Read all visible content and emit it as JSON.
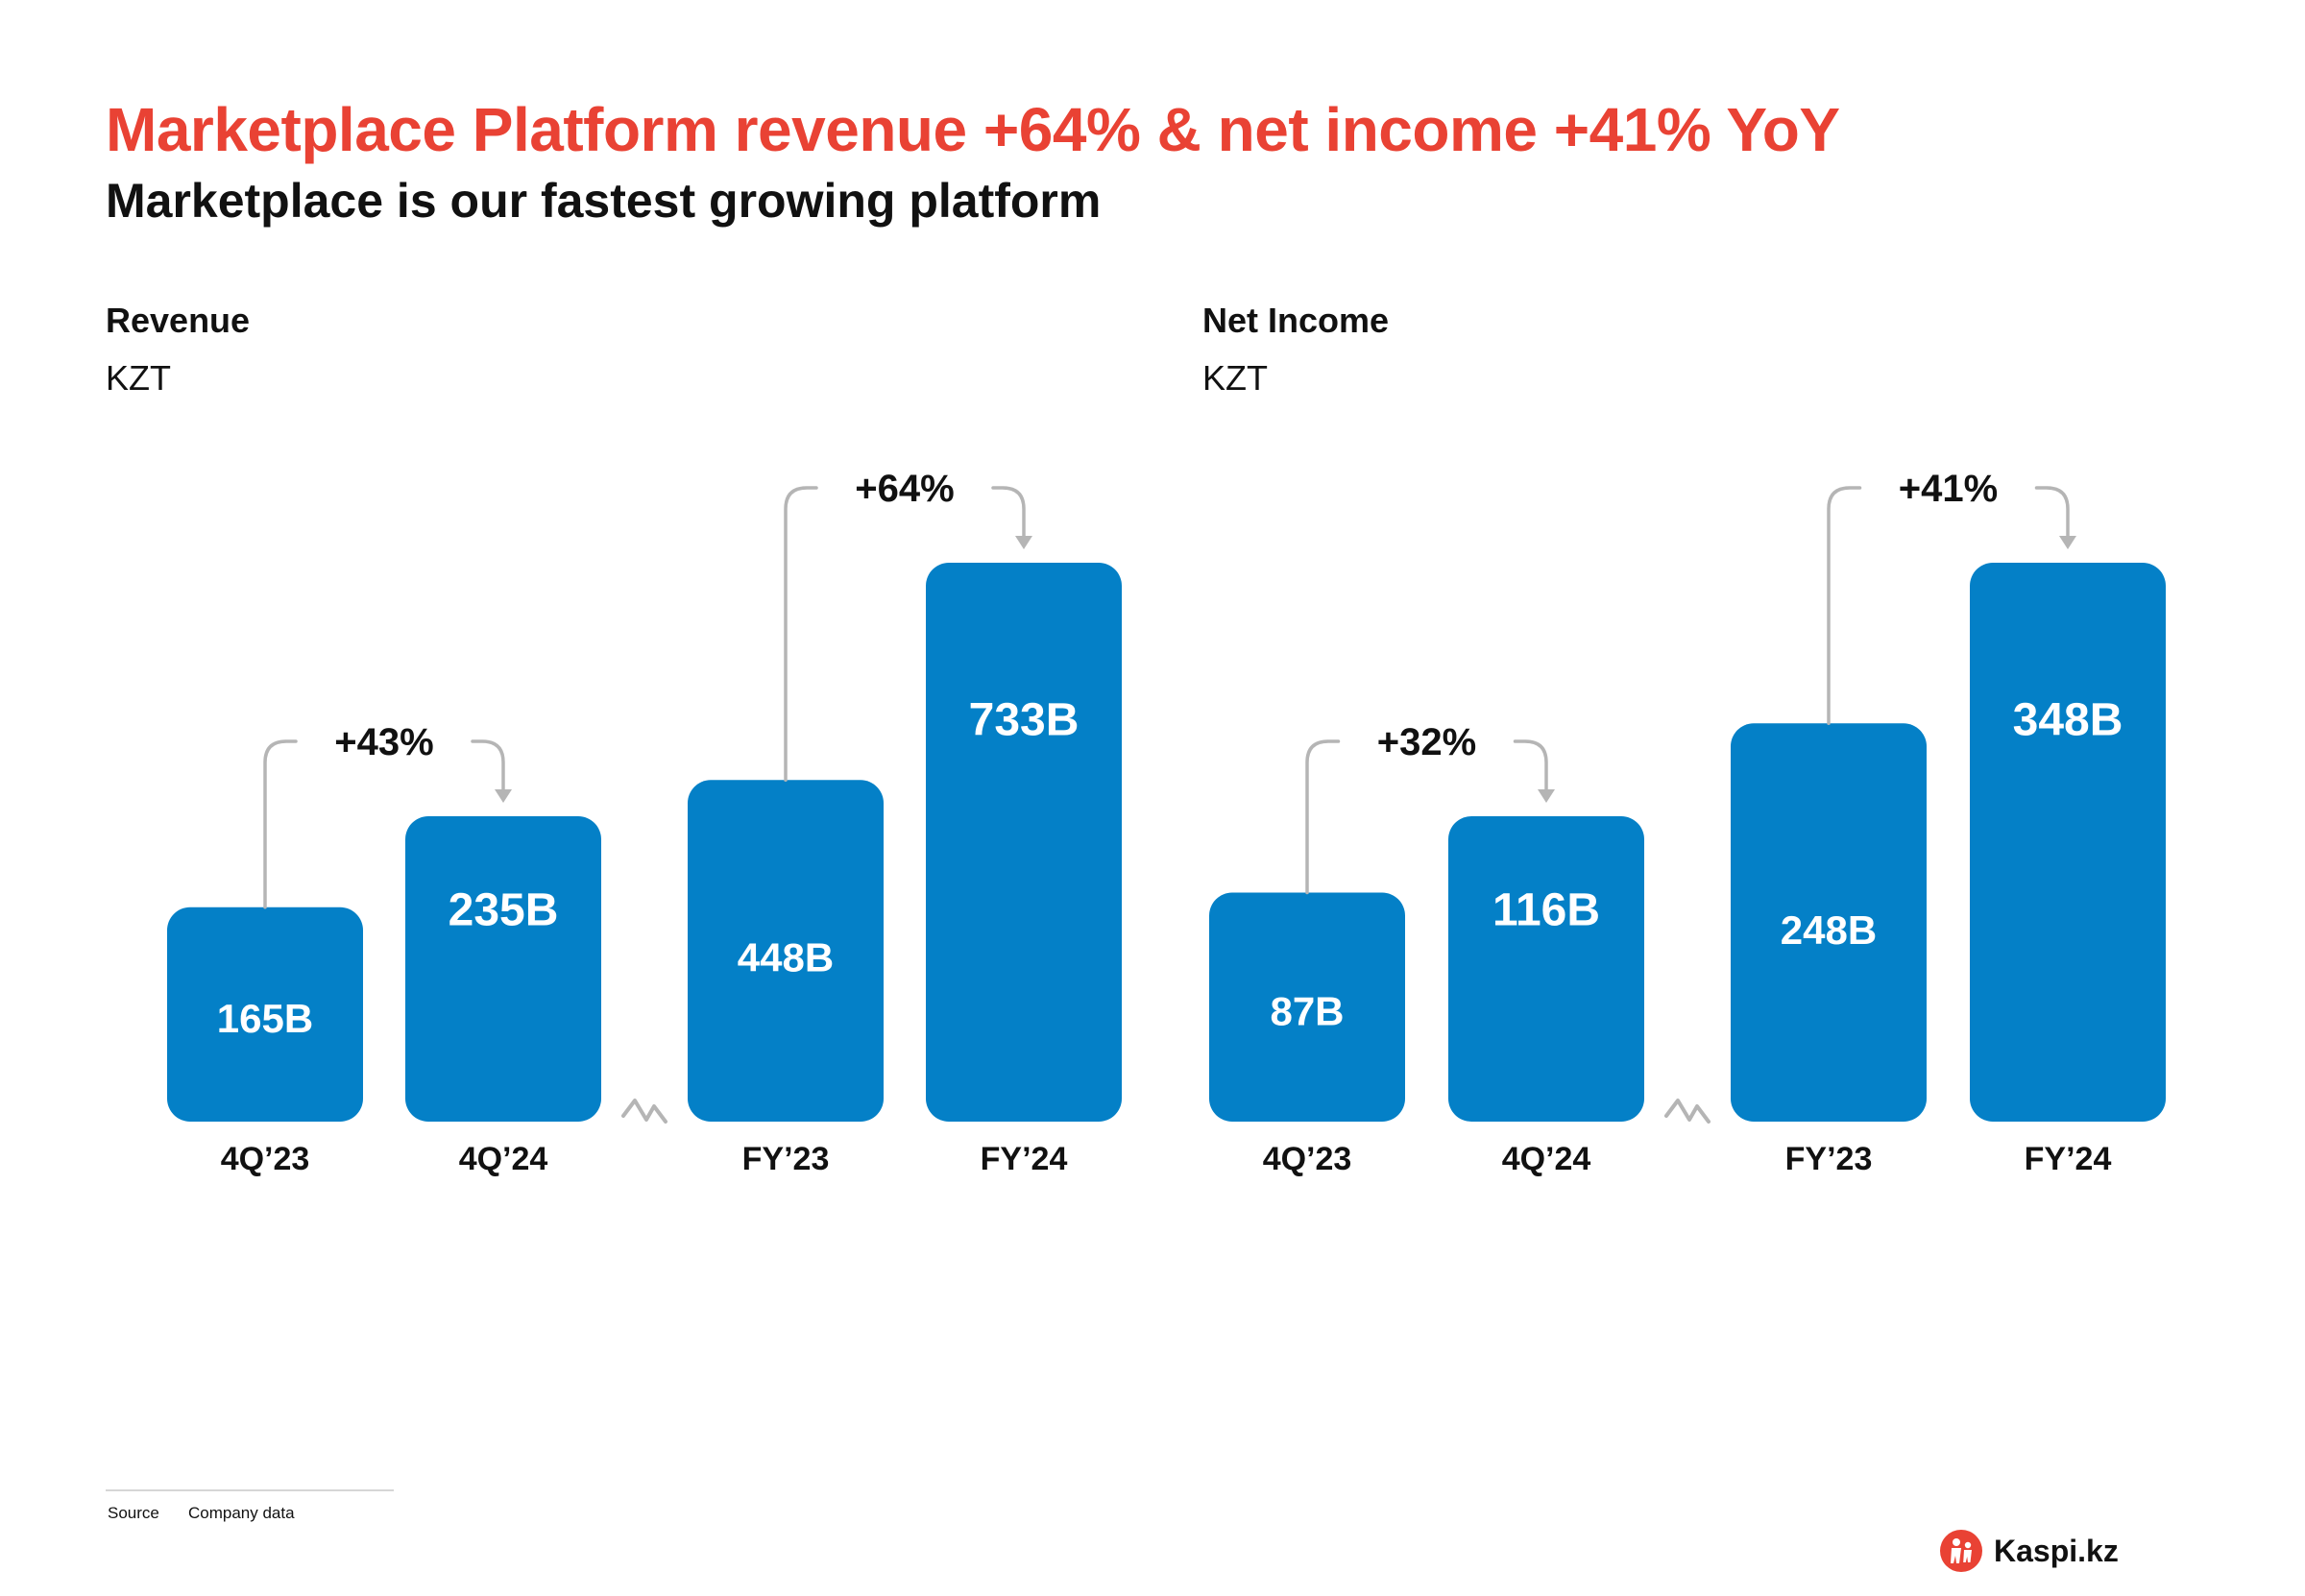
{
  "slide": {
    "title": "Marketplace Platform revenue +64% & net income +41% YoY",
    "subtitle": "Marketplace is our fastest growing platform",
    "source_label": "Source",
    "source_text": "Company data",
    "logo_text": "Kaspi.kz"
  },
  "colors": {
    "bar": "#0480c7",
    "title": "#e94234",
    "arrow": "#b5b5b5",
    "text": "#111111"
  },
  "chart_data": [
    {
      "type": "bar",
      "title": "Revenue",
      "ylabel": "KZT",
      "categories": [
        "4Q’23",
        "4Q’24",
        "FY’23",
        "FY’24"
      ],
      "values": [
        165,
        235,
        448,
        733
      ],
      "labels": [
        "165B",
        "235B",
        "448B",
        "733B"
      ],
      "growth": [
        {
          "from": 0,
          "to": 1,
          "label": "+43%"
        },
        {
          "from": 2,
          "to": 3,
          "label": "+64%"
        }
      ],
      "axis_break_between": [
        1,
        2
      ],
      "grid": false
    },
    {
      "type": "bar",
      "title": "Net Income",
      "ylabel": "KZT",
      "categories": [
        "4Q’23",
        "4Q’24",
        "FY’23",
        "FY’24"
      ],
      "values": [
        87,
        116,
        248,
        348
      ],
      "labels": [
        "87B",
        "116B",
        "248B",
        "348B"
      ],
      "growth": [
        {
          "from": 0,
          "to": 1,
          "label": "+32%"
        },
        {
          "from": 2,
          "to": 3,
          "label": "+41%"
        }
      ],
      "axis_break_between": [
        1,
        2
      ],
      "grid": false
    }
  ]
}
